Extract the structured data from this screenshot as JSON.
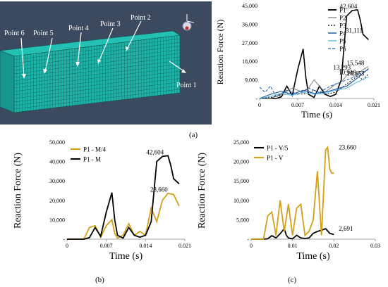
{
  "fem_labels": {
    "points": [
      "Point 6",
      "Point 5",
      "Point 4",
      "Point 3",
      "Point 2",
      "Point 1"
    ],
    "colors": {
      "background": "#3b4a5e",
      "mesh": "#1fb3a8",
      "mesh_line": "#0d4f4a"
    }
  },
  "sublabels": {
    "a": "(a)",
    "b": "(b)",
    "c": "(c)"
  },
  "chart_data": [
    {
      "id": "a",
      "type": "line",
      "xlabel": "Time (s)",
      "ylabel": "Reaction Force (N)",
      "xlim": [
        0,
        0.021
      ],
      "ylim": [
        0,
        45000
      ],
      "xticks": [
        0,
        0.007,
        0.014,
        0.021
      ],
      "xtick_labels": [
        "0",
        "0.007",
        "0.014",
        "0.021"
      ],
      "yticks": [
        0,
        9000,
        18000,
        27000,
        36000,
        45000
      ],
      "ytick_labels": [
        "-",
        "9,000",
        "18,000",
        "27,000",
        "36,000",
        "45,000"
      ],
      "legend_position": "top-right",
      "series": [
        {
          "name": "P1",
          "color": "#000000",
          "width": 1.6,
          "dash": "",
          "x": [
            0,
            0.003,
            0.004,
            0.005,
            0.006,
            0.007,
            0.008,
            0.0085,
            0.009,
            0.01,
            0.011,
            0.012,
            0.013,
            0.014,
            0.015,
            0.016,
            0.017,
            0.018,
            0.0185,
            0.019,
            0.02
          ],
          "y": [
            0,
            0,
            800,
            6000,
            1500,
            14000,
            24000,
            10000,
            2000,
            500,
            6000,
            2000,
            1000,
            2000,
            9000,
            40000,
            42604,
            43000,
            38000,
            31111,
            28500
          ]
        },
        {
          "name": "P2",
          "color": "#808080",
          "width": 1.0,
          "dash": "",
          "x": [
            0,
            0.002,
            0.004,
            0.006,
            0.008,
            0.009,
            0.01,
            0.011,
            0.012,
            0.013,
            0.014,
            0.015,
            0.016,
            0.017,
            0.018,
            0.019,
            0.02
          ],
          "y": [
            0,
            0,
            2000,
            5000,
            3000,
            5000,
            9000,
            6000,
            3000,
            5000,
            7000,
            8000,
            11000,
            13293,
            12000,
            14000,
            15548
          ]
        },
        {
          "name": "P3",
          "color": "#000000",
          "width": 1.0,
          "dash": "2,2",
          "x": [
            0,
            0.002,
            0.004,
            0.006,
            0.008,
            0.01,
            0.012,
            0.014,
            0.016,
            0.017,
            0.018,
            0.019,
            0.02
          ],
          "y": [
            0,
            500,
            1500,
            3000,
            2000,
            4000,
            2000,
            3000,
            7000,
            9000,
            10918,
            9000,
            12000
          ]
        },
        {
          "name": "P4",
          "color": "#1f5fa8",
          "width": 1.2,
          "dash": "",
          "x": [
            0,
            0.002,
            0.004,
            0.006,
            0.008,
            0.01,
            0.012,
            0.014,
            0.016,
            0.018,
            0.02
          ],
          "y": [
            0,
            2000,
            3500,
            2000,
            4000,
            2500,
            3000,
            4500,
            6000,
            10000,
            14500
          ]
        },
        {
          "name": "P5",
          "color": "#5ab4e6",
          "width": 1.0,
          "dash": "",
          "x": [
            0,
            0.002,
            0.004,
            0.006,
            0.008,
            0.01,
            0.012,
            0.014,
            0.016,
            0.018,
            0.02
          ],
          "y": [
            0,
            1000,
            2500,
            1500,
            3000,
            2000,
            2500,
            4000,
            5000,
            8000,
            10453
          ]
        },
        {
          "name": "P6",
          "color": "#1f5fa8",
          "width": 1.0,
          "dash": "4,2",
          "x": [
            0,
            0.001,
            0.002,
            0.003,
            0.005,
            0.007,
            0.009,
            0.011,
            0.013,
            0.015,
            0.017,
            0.019,
            0.02
          ],
          "y": [
            5500,
            3000,
            6000,
            1000,
            4000,
            2000,
            5000,
            3000,
            6000,
            8000,
            10000,
            13000,
            14000
          ]
        }
      ],
      "annotations": [
        {
          "text": "42,604",
          "x": 0.0182,
          "y": 43000
        },
        {
          "text": "31,111",
          "x": 0.0192,
          "y": 31111
        },
        {
          "text": "13,293",
          "x": 0.017,
          "y": 13293
        },
        {
          "text": "15,548",
          "x": 0.0195,
          "y": 15548
        },
        {
          "text": "10,918",
          "x": 0.018,
          "y": 10918
        },
        {
          "text": "10,453",
          "x": 0.0195,
          "y": 10453
        }
      ]
    },
    {
      "id": "b",
      "type": "line",
      "xlabel": "Time (s)",
      "ylabel": "Reaction Force (N)",
      "xlim": [
        0,
        0.021
      ],
      "ylim": [
        0,
        50000
      ],
      "xticks": [
        0,
        0.007,
        0.014,
        0.021
      ],
      "xtick_labels": [
        "0",
        "0.007",
        "0.014",
        "0.021"
      ],
      "yticks": [
        0,
        10000,
        20000,
        30000,
        40000,
        50000
      ],
      "ytick_labels": [
        "-",
        "10,000",
        "20,000",
        "30,000",
        "40,000",
        "50,000"
      ],
      "legend_position": "top-left",
      "series": [
        {
          "name": "P1 - M/4",
          "color": "#d4a017",
          "width": 1.8,
          "dash": "",
          "x": [
            0,
            0.003,
            0.004,
            0.005,
            0.006,
            0.007,
            0.008,
            0.0085,
            0.009,
            0.01,
            0.011,
            0.012,
            0.013,
            0.014,
            0.015,
            0.016,
            0.017,
            0.018,
            0.019,
            0.02
          ],
          "y": [
            0,
            0,
            6000,
            7000,
            1000,
            7000,
            10000,
            3000,
            500,
            2000,
            8000,
            2000,
            4000,
            2000,
            16000,
            9000,
            20000,
            23660,
            23000,
            17000
          ]
        },
        {
          "name": "P1 - M",
          "color": "#000000",
          "width": 1.8,
          "dash": "",
          "x": [
            0,
            0.003,
            0.004,
            0.005,
            0.006,
            0.007,
            0.008,
            0.0085,
            0.009,
            0.01,
            0.011,
            0.012,
            0.013,
            0.014,
            0.015,
            0.016,
            0.017,
            0.018,
            0.0185,
            0.019,
            0.02
          ],
          "y": [
            0,
            0,
            800,
            6000,
            1500,
            14000,
            24000,
            10000,
            2000,
            500,
            6000,
            2000,
            1000,
            2000,
            9000,
            40000,
            42604,
            43000,
            38000,
            31111,
            28500
          ]
        }
      ],
      "annotations": [
        {
          "text": "42,604",
          "x": 0.0175,
          "y": 43000
        },
        {
          "text": "23,660",
          "x": 0.0182,
          "y": 23660
        }
      ]
    },
    {
      "id": "c",
      "type": "line",
      "xlabel": "Time (s)",
      "ylabel": "Reaction Force (N)",
      "xlim": [
        0,
        0.03
      ],
      "ylim": [
        0,
        25000
      ],
      "xticks": [
        0,
        0.01,
        0.02,
        0.03
      ],
      "xtick_labels": [
        "0",
        "0.01",
        "0.02",
        "0.03"
      ],
      "yticks": [
        0,
        5000,
        10000,
        15000,
        20000,
        25000
      ],
      "ytick_labels": [
        "-",
        "5,000",
        "10,000",
        "15,000",
        "20,000",
        "25,000"
      ],
      "legend_position": "top-left",
      "series": [
        {
          "name": "P1 - V/5",
          "color": "#000000",
          "width": 1.8,
          "dash": "",
          "x": [
            0,
            0.003,
            0.004,
            0.005,
            0.006,
            0.007,
            0.008,
            0.0085,
            0.009,
            0.01,
            0.011,
            0.012,
            0.013,
            0.014,
            0.015,
            0.016,
            0.017,
            0.018,
            0.019,
            0.02
          ],
          "y": [
            0,
            0,
            100,
            900,
            300,
            1400,
            2691,
            1000,
            300,
            100,
            1000,
            300,
            200,
            300,
            1500,
            2000,
            2300,
            2691,
            1500,
            1200
          ]
        },
        {
          "name": "P1 - V",
          "color": "#d4a017",
          "width": 1.8,
          "dash": "",
          "x": [
            0,
            0.003,
            0.004,
            0.005,
            0.006,
            0.007,
            0.008,
            0.009,
            0.01,
            0.011,
            0.012,
            0.013,
            0.014,
            0.015,
            0.016,
            0.017,
            0.018,
            0.0185,
            0.019,
            0.0195,
            0.02
          ],
          "y": [
            0,
            0,
            6000,
            7000,
            1000,
            10000,
            2000,
            9000,
            1000,
            8000,
            9000,
            1000,
            2000,
            5000,
            17500,
            1000,
            23000,
            23660,
            18000,
            17000,
            17000
          ]
        }
      ],
      "annotations": [
        {
          "text": "23,660",
          "x": 0.0205,
          "y": 23660
        },
        {
          "text": "2,691",
          "x": 0.0205,
          "y": 2691
        }
      ]
    }
  ]
}
